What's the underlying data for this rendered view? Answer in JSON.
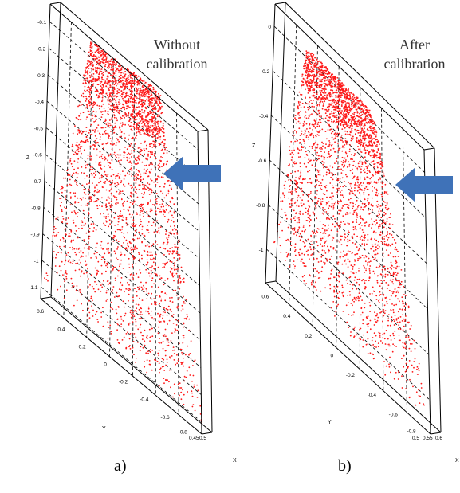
{
  "figure": {
    "captions": [
      "a)",
      "b)"
    ]
  },
  "colors": {
    "points": "#ff1a1a",
    "arrow": "#3f72b8",
    "box": "#000000",
    "grid": "#000000"
  },
  "chart_data": [
    {
      "type": "scatter",
      "title": "Without calibration",
      "xlabel": "X",
      "ylabel": "Y",
      "zlabel": "Z",
      "z_ticks": [
        "-0.1",
        "-0.2",
        "-0.3",
        "-0.4",
        "-0.5",
        "-0.6",
        "-0.7",
        "-0.8",
        "-0.9",
        "-1",
        "-1.1"
      ],
      "y_ticks": [
        "0.6",
        "0.4",
        "0.2",
        "0",
        "-0.2",
        "-0.4",
        "-0.6",
        "-0.8"
      ],
      "x_ticks": [
        "0.45",
        "0.5"
      ],
      "zlim": [
        -1.15,
        -0.05
      ],
      "ylim": [
        -0.9,
        0.7
      ],
      "xlim": [
        0.45,
        0.5
      ],
      "grid": true,
      "annotation": "arrow pointing left at the point cloud surface"
    },
    {
      "type": "scatter",
      "title": "After calibration",
      "xlabel": "X",
      "ylabel": "Y",
      "zlabel": "Z",
      "z_ticks": [
        "0",
        "-0.2",
        "-0.4",
        "-0.6",
        "-0.8",
        "-1"
      ],
      "y_ticks": [
        "0.6",
        "0.4",
        "0.2",
        "0",
        "-0.2",
        "-0.4",
        "-0.6",
        "-0.8"
      ],
      "x_ticks": [
        "0.5",
        "0.55",
        "0.6"
      ],
      "zlim": [
        -1.15,
        0.05
      ],
      "ylim": [
        -0.9,
        0.7
      ],
      "xlim": [
        0.5,
        0.6
      ],
      "grid": true,
      "annotation": "arrow pointing left at the point cloud surface"
    }
  ]
}
